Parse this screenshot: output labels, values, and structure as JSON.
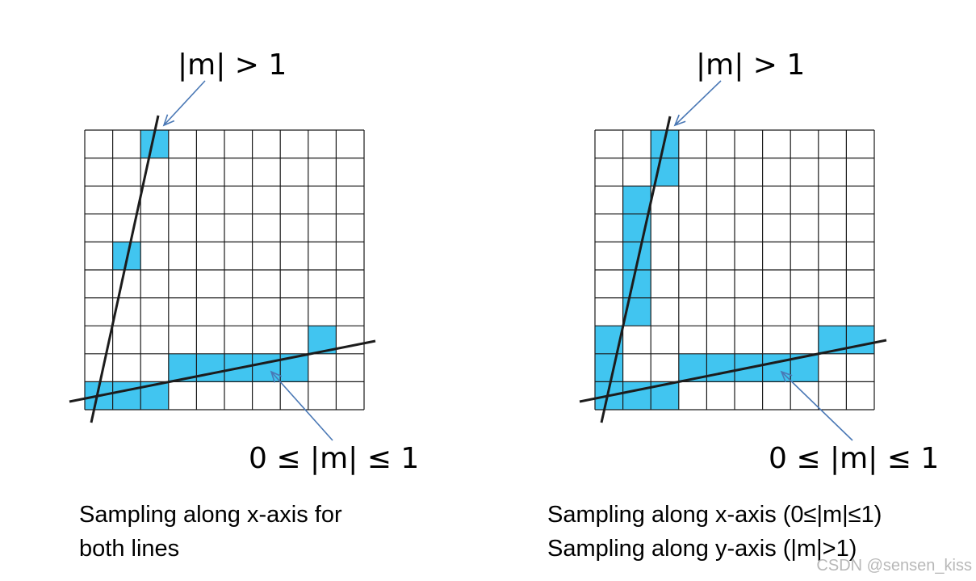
{
  "colors": {
    "fill": "#41c5f0",
    "grid": "#1a1a1a",
    "line": "#1c1c1c",
    "arrow": "#4a78b5"
  },
  "panels": [
    {
      "steep_label": "|m| > 1",
      "shallow_label": "0 ≤ |m| ≤ 1",
      "caption_lines": [
        "Sampling along x-axis for",
        "both lines"
      ],
      "grid": {
        "cols": 10,
        "rows": 10
      },
      "filled_cells": [
        [
          2,
          0
        ],
        [
          1,
          4
        ],
        [
          8,
          7
        ],
        [
          3,
          8
        ],
        [
          4,
          8
        ],
        [
          5,
          8
        ],
        [
          6,
          8
        ],
        [
          7,
          8
        ],
        [
          0,
          9
        ],
        [
          1,
          9
        ],
        [
          2,
          9
        ]
      ]
    },
    {
      "steep_label": "|m| > 1",
      "shallow_label": "0 ≤ |m| ≤ 1",
      "caption_lines": [
        "Sampling along x-axis (0≤|m|≤1)",
        "Sampling along y-axis (|m|>1)"
      ],
      "grid": {
        "cols": 10,
        "rows": 10
      },
      "filled_cells": [
        [
          2,
          0
        ],
        [
          2,
          1
        ],
        [
          1,
          2
        ],
        [
          1,
          3
        ],
        [
          1,
          4
        ],
        [
          1,
          5
        ],
        [
          1,
          6
        ],
        [
          0,
          7
        ],
        [
          8,
          7
        ],
        [
          9,
          7
        ],
        [
          0,
          8
        ],
        [
          3,
          8
        ],
        [
          4,
          8
        ],
        [
          5,
          8
        ],
        [
          6,
          8
        ],
        [
          7,
          8
        ],
        [
          0,
          9
        ],
        [
          1,
          9
        ],
        [
          2,
          9
        ]
      ]
    }
  ],
  "watermark": "CSDN @sensen_kiss"
}
